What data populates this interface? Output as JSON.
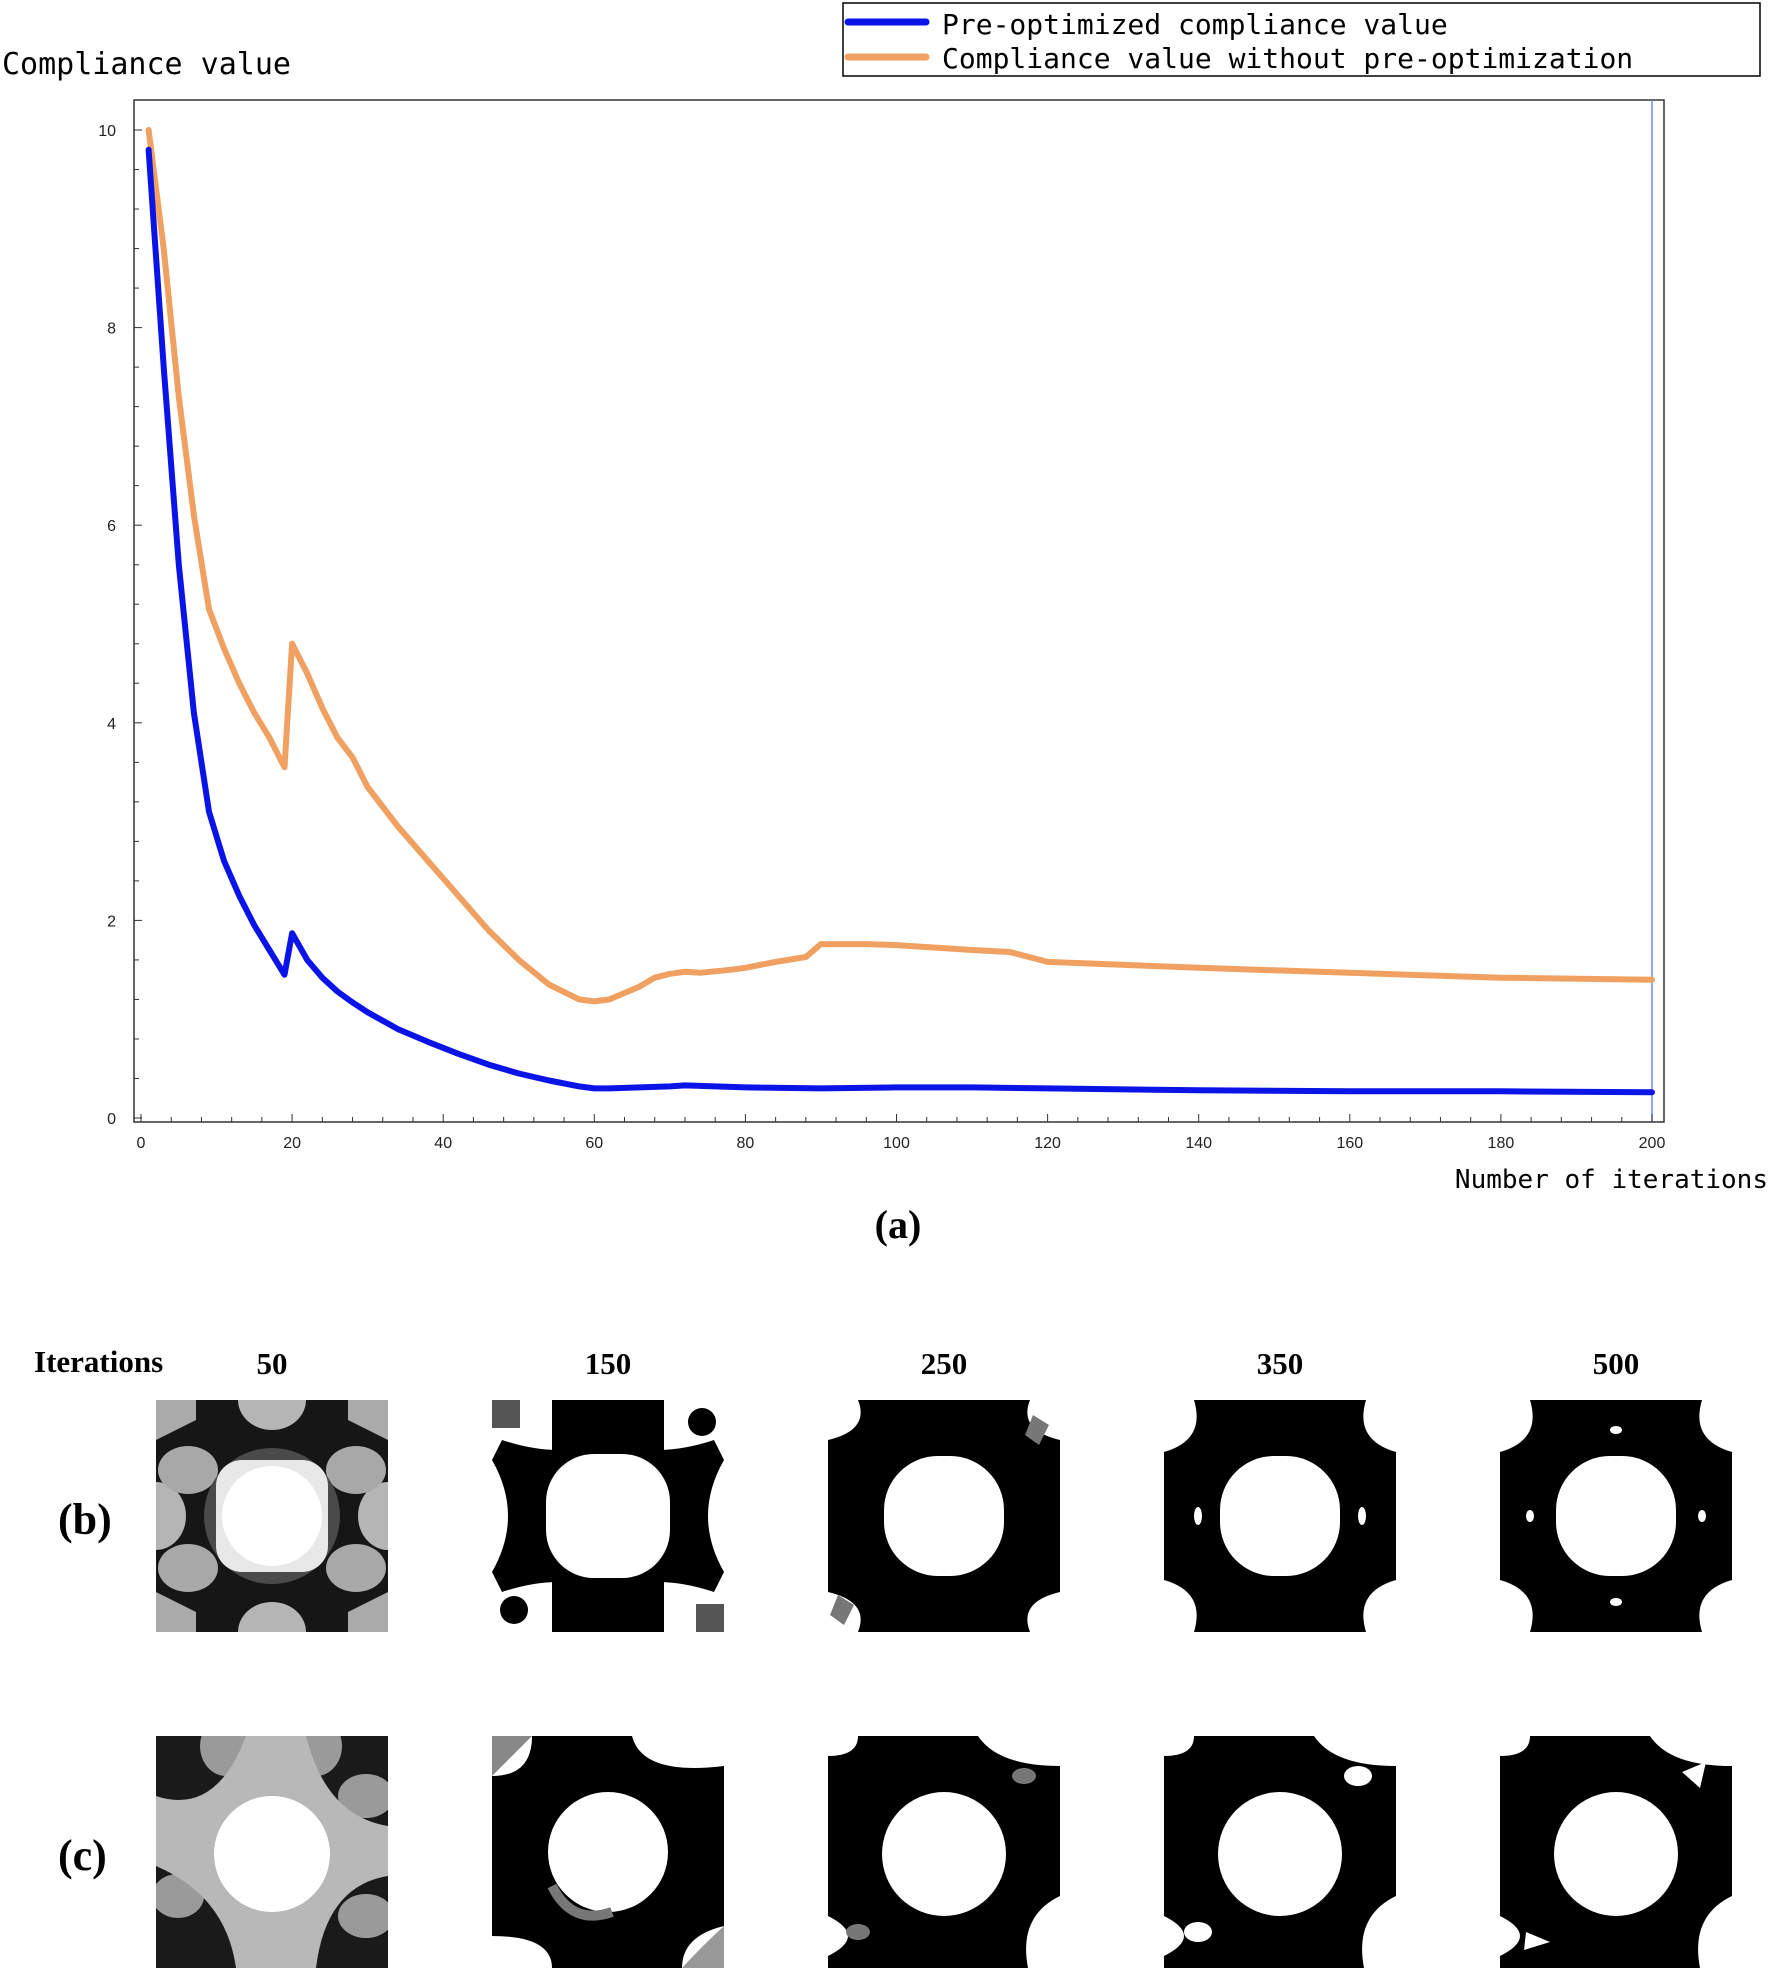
{
  "chart_data": {
    "type": "line",
    "ylabel": "Compliance value",
    "xlabel": "Number of iterations",
    "xlim": [
      0,
      202
    ],
    "ylim": [
      0,
      10.3
    ],
    "x_ticks": [
      "0",
      "20",
      "40",
      "60",
      "80",
      "100",
      "120",
      "140",
      "160",
      "180",
      "200"
    ],
    "y_ticks": [
      "0",
      "2",
      "4",
      "6",
      "8",
      "10"
    ],
    "grid": false,
    "legend_position": "top-right",
    "series": [
      {
        "name": "Pre-optimized compliance value",
        "color": "#0a14e6",
        "x": [
          1,
          3,
          5,
          7,
          9,
          11,
          13,
          15,
          17,
          19,
          20,
          22,
          24,
          26,
          28,
          30,
          34,
          38,
          42,
          46,
          50,
          54,
          58,
          60,
          62,
          66,
          70,
          72,
          76,
          80,
          90,
          100,
          110,
          120,
          140,
          160,
          180,
          200
        ],
        "y": [
          9.8,
          7.6,
          5.6,
          4.1,
          3.1,
          2.6,
          2.25,
          1.95,
          1.7,
          1.45,
          1.87,
          1.6,
          1.42,
          1.28,
          1.17,
          1.07,
          0.9,
          0.77,
          0.65,
          0.54,
          0.45,
          0.38,
          0.32,
          0.3,
          0.3,
          0.31,
          0.32,
          0.33,
          0.32,
          0.31,
          0.3,
          0.31,
          0.31,
          0.3,
          0.28,
          0.27,
          0.27,
          0.26
        ]
      },
      {
        "name": "Compliance value without pre-optimization",
        "color": "#f0a060",
        "x": [
          1,
          3,
          5,
          7,
          9,
          11,
          13,
          15,
          17,
          19,
          20,
          22,
          24,
          26,
          28,
          30,
          34,
          38,
          42,
          46,
          50,
          54,
          58,
          60,
          62,
          66,
          68,
          70,
          72,
          74,
          78,
          80,
          84,
          88,
          90,
          96,
          100,
          110,
          115,
          120,
          140,
          160,
          180,
          200
        ],
        "y": [
          10,
          8.8,
          7.3,
          6.1,
          5.15,
          4.75,
          4.4,
          4.1,
          3.85,
          3.55,
          4.8,
          4.5,
          4.15,
          3.85,
          3.65,
          3.35,
          2.95,
          2.6,
          2.25,
          1.9,
          1.6,
          1.35,
          1.2,
          1.18,
          1.2,
          1.33,
          1.42,
          1.46,
          1.48,
          1.47,
          1.5,
          1.52,
          1.58,
          1.63,
          1.76,
          1.76,
          1.75,
          1.7,
          1.68,
          1.58,
          1.52,
          1.47,
          1.42,
          1.4
        ]
      }
    ]
  },
  "figure": {
    "label_a": "(a)",
    "label_b": "(b)",
    "label_c": "(c)",
    "iterations_label": "Iterations",
    "columns": [
      "50",
      "150",
      "250",
      "350",
      "500"
    ]
  }
}
